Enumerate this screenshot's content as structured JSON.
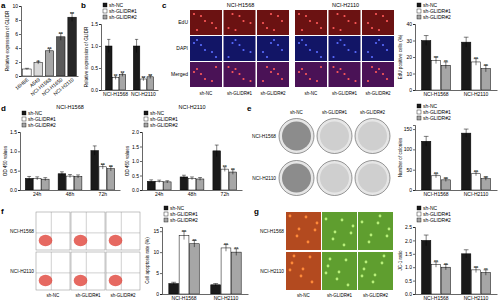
{
  "chart_data": [
    {
      "type": "bar",
      "y_label": "Relative expression of GLIDR",
      "categories": [
        "16HBE",
        "A549",
        "NCI-H1568",
        "NCI-H1650",
        "NCI-H2110"
      ],
      "values": [
        1.0,
        1.9,
        3.6,
        5.6,
        8.4
      ],
      "errors": [
        0.1,
        0.2,
        0.3,
        0.5,
        0.6
      ],
      "annotations": [
        null,
        "*",
        "**",
        "**",
        "**"
      ],
      "colors": [
        "#ffffff",
        "#d9d9d9",
        "#a6a6a6",
        "#595959",
        "#262626"
      ],
      "ylim": [
        0,
        10
      ],
      "yticks": [
        0,
        2,
        4,
        6,
        8,
        10
      ]
    },
    {
      "type": "bar",
      "y_label": "Relative expression of GLIDR",
      "legend": "top",
      "categories": [
        "NCI-H1568",
        "NCI-H2110"
      ],
      "series": [
        {
          "name": "sh-NC",
          "color": "#1a1a1a",
          "values": [
            1.0,
            1.0
          ],
          "errors": [
            0.15,
            0.15
          ]
        },
        {
          "name": "sh-GLIDR#1",
          "color": "#ffffff",
          "values": [
            0.28,
            0.25
          ],
          "errors": [
            0.04,
            0.04
          ],
          "annotations": [
            "**",
            "**"
          ]
        },
        {
          "name": "sh-GLIDR#2",
          "color": "#a6a6a6",
          "values": [
            0.35,
            0.3
          ],
          "errors": [
            0.04,
            0.04
          ],
          "annotations": [
            "**",
            "**"
          ]
        }
      ],
      "ylim": [
        0,
        1.5
      ],
      "yticks": [
        {
          "value": 0,
          "label": "0.0"
        },
        0.5,
        {
          "value": 1,
          "label": "1.0"
        },
        1.5
      ]
    },
    {
      "type": "bar",
      "y_label": "EdU positive cells (%)",
      "legend": "top",
      "categories": [
        "NCI-H1568",
        "NCI-H2110"
      ],
      "series": [
        {
          "name": "sh-NC",
          "color": "#1a1a1a",
          "values": [
            30,
            29
          ],
          "errors": [
            3,
            3
          ]
        },
        {
          "name": "sh-GLIDR#1",
          "color": "#ffffff",
          "values": [
            18,
            17
          ],
          "errors": [
            2,
            2
          ],
          "annotations": [
            "**",
            "**"
          ]
        },
        {
          "name": "sh-GLIDR#2",
          "color": "#a6a6a6",
          "values": [
            15,
            13
          ],
          "errors": [
            2,
            2
          ],
          "annotations": [
            "**",
            "**"
          ]
        }
      ],
      "ylim": [
        0,
        40
      ],
      "yticks": [
        0,
        10,
        20,
        30,
        40
      ]
    },
    {
      "type": "bar",
      "title": "NCI-H1568",
      "y_label": "OD 450 values",
      "legend": "top",
      "categories": [
        "24h",
        "48h",
        "72h"
      ],
      "series": [
        {
          "name": "sh-NC",
          "color": "#1a1a1a",
          "values": [
            0.3,
            0.42,
            1.02
          ],
          "errors": [
            0.05,
            0.05,
            0.12
          ]
        },
        {
          "name": "sh-GLIDR#1",
          "color": "#ffffff",
          "values": [
            0.3,
            0.36,
            0.6
          ],
          "errors": [
            0.04,
            0.04,
            0.06
          ],
          "annotations": [
            null,
            null,
            "**"
          ]
        },
        {
          "name": "sh-GLIDR#2",
          "color": "#a6a6a6",
          "values": [
            0.28,
            0.35,
            0.55
          ],
          "errors": [
            0.04,
            0.04,
            0.06
          ],
          "annotations": [
            null,
            null,
            "**"
          ]
        }
      ],
      "ylim": [
        0,
        1.5
      ],
      "yticks": [
        {
          "value": 0,
          "label": "0.0"
        },
        0.5,
        {
          "value": 1,
          "label": "1.0"
        },
        1.5
      ]
    },
    {
      "type": "bar",
      "title": "NCI-H2110",
      "y_label": "OD 450 values",
      "legend": "top",
      "categories": [
        "24h",
        "48h",
        "72h"
      ],
      "series": [
        {
          "name": "sh-NC",
          "color": "#1a1a1a",
          "values": [
            0.3,
            0.45,
            1.35
          ],
          "errors": [
            0.05,
            0.06,
            0.2
          ]
        },
        {
          "name": "sh-GLIDR#1",
          "color": "#ffffff",
          "values": [
            0.3,
            0.4,
            0.72
          ],
          "errors": [
            0.04,
            0.05,
            0.08
          ],
          "annotations": [
            null,
            null,
            "**"
          ]
        },
        {
          "name": "sh-GLIDR#2",
          "color": "#a6a6a6",
          "values": [
            0.28,
            0.38,
            0.62
          ],
          "errors": [
            0.04,
            0.05,
            0.08
          ],
          "annotations": [
            null,
            null,
            "**"
          ]
        }
      ],
      "ylim": [
        0,
        2
      ],
      "yticks": [
        {
          "value": 0,
          "label": "0.0"
        },
        0.5,
        {
          "value": 1,
          "label": "1.0"
        },
        1.5,
        {
          "value": 2,
          "label": "2.0"
        }
      ]
    },
    {
      "type": "bar",
      "y_label": "Number of colonies",
      "legend": "top",
      "categories": [
        "NCI-H1568",
        "NCI-H2110"
      ],
      "series": [
        {
          "name": "sh-NC",
          "color": "#1a1a1a",
          "values": [
            120,
            140
          ],
          "errors": [
            12,
            10
          ]
        },
        {
          "name": "sh-GLIDR#1",
          "color": "#ffffff",
          "values": [
            35,
            40
          ],
          "errors": [
            5,
            5
          ],
          "annotations": [
            "**",
            "**"
          ]
        },
        {
          "name": "sh-GLIDR#2",
          "color": "#a6a6a6",
          "values": [
            25,
            28
          ],
          "errors": [
            4,
            4
          ],
          "annotations": [
            "**",
            "**"
          ]
        }
      ],
      "ylim": [
        0,
        160
      ],
      "yticks": [
        0,
        50,
        100,
        150
      ]
    },
    {
      "type": "bar",
      "y_label": "Cell apoptosis rate (%)",
      "legend": "top",
      "categories": [
        "NCI-H1568",
        "NCI-H2110"
      ],
      "series": [
        {
          "name": "sh-NC",
          "color": "#1a1a1a",
          "values": [
            2.5,
            2.2
          ],
          "errors": [
            0.3,
            0.3
          ]
        },
        {
          "name": "sh-GLIDR#1",
          "color": "#ffffff",
          "values": [
            14,
            11
          ],
          "errors": [
            1,
            0.8
          ],
          "annotations": [
            "**",
            "**"
          ]
        },
        {
          "name": "sh-GLIDR#2",
          "color": "#a6a6a6",
          "values": [
            12,
            10
          ],
          "errors": [
            0.8,
            0.8
          ],
          "annotations": [
            "**",
            "**"
          ]
        }
      ],
      "ylim": [
        0,
        16
      ],
      "yticks": [
        0,
        5,
        10,
        15
      ]
    },
    {
      "type": "bar",
      "y_label": "JC-1 ratio",
      "legend": "top",
      "categories": [
        "NCI-H1568",
        "NCI-H2110"
      ],
      "series": [
        {
          "name": "sh-NC",
          "color": "#1a1a1a",
          "values": [
            2.0,
            1.5
          ],
          "errors": [
            0.2,
            0.15
          ]
        },
        {
          "name": "sh-GLIDR#1",
          "color": "#ffffff",
          "values": [
            1.1,
            0.9
          ],
          "errors": [
            0.1,
            0.1
          ],
          "annotations": [
            "**",
            "**"
          ]
        },
        {
          "name": "sh-GLIDR#2",
          "color": "#a6a6a6",
          "values": [
            1.0,
            0.8
          ],
          "errors": [
            0.1,
            0.1
          ],
          "annotations": [
            "**",
            "**"
          ]
        }
      ],
      "ylim": [
        0,
        2.5
      ],
      "yticks": [
        {
          "value": 0,
          "label": "0.0"
        },
        0.5,
        {
          "value": 1,
          "label": "1.0"
        },
        1.5,
        {
          "value": 2,
          "label": "2.0"
        },
        2.5
      ]
    }
  ],
  "panel_labels": [
    "a",
    "b",
    "c",
    "d",
    "e",
    "f",
    "g"
  ],
  "image_panels": {
    "c": {
      "groups": [
        "NCI-H1568",
        "NCI-H2110"
      ],
      "rows": [
        "EdU",
        "DAPI",
        "Merged"
      ],
      "columns": [
        "sh-NC",
        "sh-GLIDR#1",
        "sh-GLIDR#2"
      ]
    },
    "e": {
      "rows": [
        "NCI-H1568",
        "NCI-H2110"
      ],
      "columns": [
        "sh-NC",
        "sh-GLIDR#1",
        "sh-GLIDR#2"
      ]
    },
    "f": {
      "rows": [
        "NCI-H1568",
        "NCI-H2110"
      ],
      "columns": [
        "sh-NC",
        "sh-GLIDR#1",
        "sh-GLIDR#2"
      ]
    },
    "g": {
      "rows": [
        "NCI-H1568",
        "NCI-H2110"
      ],
      "columns": [
        "sh-NC",
        "sh-GLIDR#1",
        "sh-GLIDR#2"
      ]
    }
  }
}
